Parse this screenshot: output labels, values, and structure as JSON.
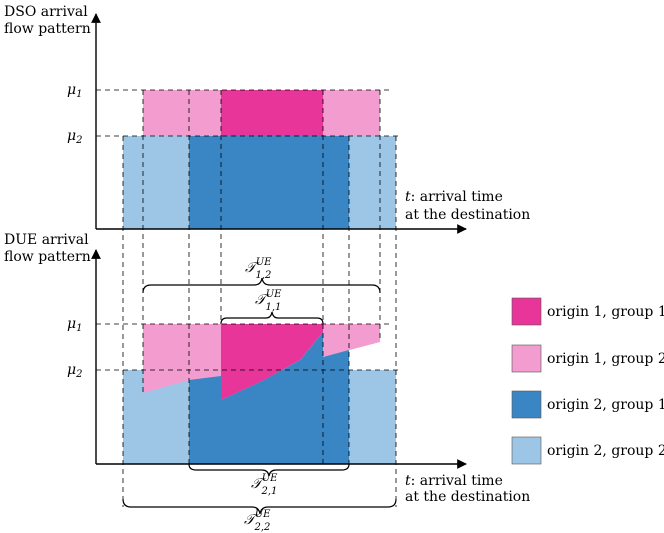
{
  "top_panel": {
    "y_title_line1": "DSO arrival",
    "y_title_line2": "flow pattern",
    "mu1_symbol": "μ",
    "mu1_index": "1",
    "mu2_symbol": "μ",
    "mu2_index": "2",
    "x_label_var": "t",
    "x_label_line1": ": arrival time",
    "x_label_line2": "at the destination"
  },
  "bottom_panel": {
    "y_title_line1": "DUE arrival",
    "y_title_line2": "flow pattern",
    "mu1_symbol": "μ",
    "mu1_index": "1",
    "mu2_symbol": "μ",
    "mu2_index": "2",
    "x_label_var": "t",
    "x_label_line1": ": arrival time",
    "x_label_line2": "at the destination"
  },
  "intervals": [
    {
      "symbol": "𝒯",
      "sup": "UE",
      "sub": "1,2"
    },
    {
      "symbol": "𝒯",
      "sup": "UE",
      "sub": "1,1"
    },
    {
      "symbol": "𝒯",
      "sup": "UE",
      "sub": "2,1"
    },
    {
      "symbol": "𝒯",
      "sup": "UE",
      "sub": "2,2"
    }
  ],
  "legend": [
    {
      "label": "origin 1, group 1",
      "color": "#e8359a"
    },
    {
      "label": "origin 1, group 2",
      "color": "#f29ccf"
    },
    {
      "label": "origin 2, group 1",
      "color": "#3a86c4"
    },
    {
      "label": "origin 2, group 2",
      "color": "#9dc6e6"
    }
  ]
}
